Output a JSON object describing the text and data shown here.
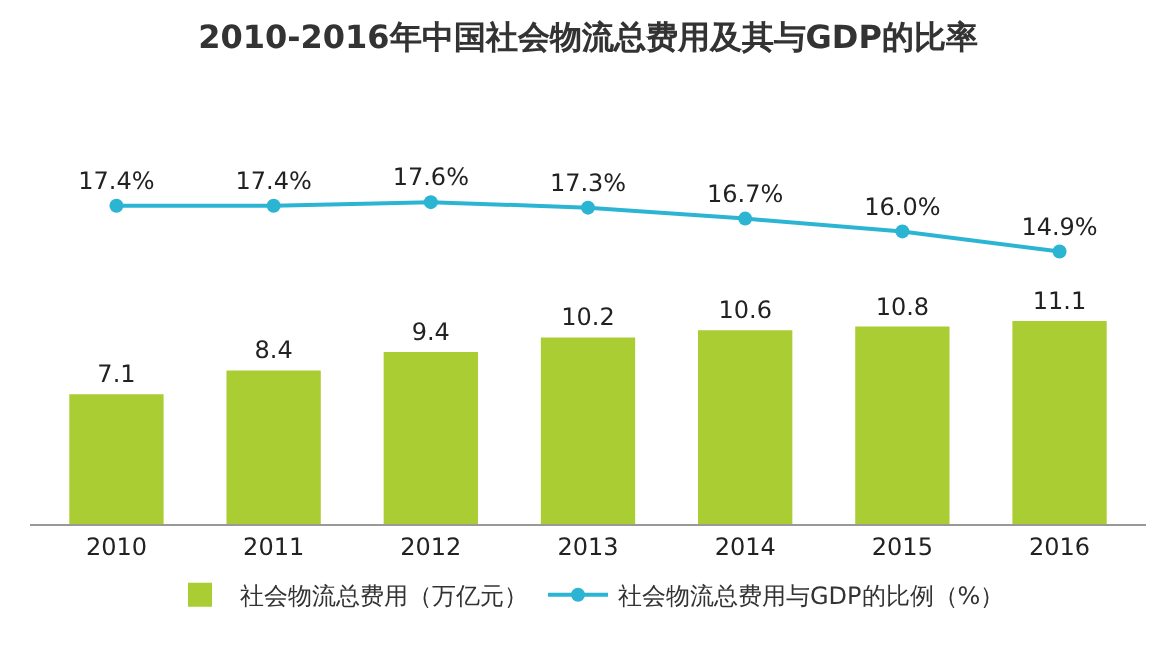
{
  "chart_data": {
    "type": "bar",
    "title": "2010-2016年中国社会物流总费用及其与GDP的比率",
    "categories": [
      "2010",
      "2011",
      "2012",
      "2013",
      "2014",
      "2015",
      "2016"
    ],
    "series": [
      {
        "name": "社会物流总费用（万亿元）",
        "color": "#a9cd33",
        "values": [
          7.1,
          8.4,
          9.4,
          10.2,
          10.6,
          10.8,
          11.1
        ]
      },
      {
        "name": "社会物流总费用与GDP的比例（%）",
        "type": "line",
        "color": "#2cb5d3",
        "marker": "circle",
        "values": [
          17.4,
          17.4,
          17.6,
          17.3,
          16.7,
          16.0,
          14.9
        ],
        "value_labels": [
          "17.4%",
          "17.4%",
          "17.6%",
          "17.3%",
          "16.7%",
          "16.0%",
          "14.9%"
        ]
      }
    ],
    "data_labels": true,
    "tick_labels": "x",
    "grid": false,
    "legend": "bottom"
  }
}
